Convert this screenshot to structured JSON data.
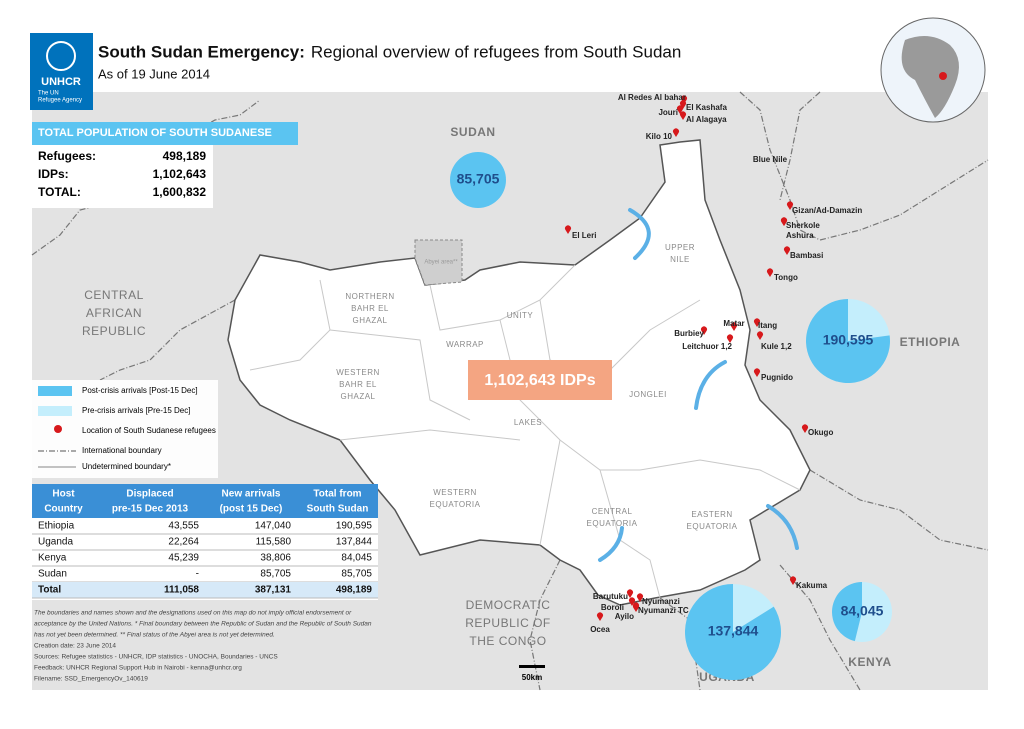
{
  "header": {
    "logo": "UNHCR",
    "logo_sub": [
      "The UN",
      "Refugee Agency"
    ],
    "title_bold": "South Sudan Emergency:",
    "title": "Regional overview of refugees from South Sudan",
    "date": "As of 19 June 2014"
  },
  "totals": {
    "heading": "TOTAL POPULATION OF SOUTH SUDANESE",
    "rows": [
      [
        "Refugees:",
        "498,189"
      ],
      [
        "IDPs:",
        "1,102,643"
      ],
      [
        "TOTAL:",
        "1,600,832"
      ]
    ]
  },
  "idp_label": "1,102,643 IDPs",
  "legend": {
    "post": "Post-crisis arrivals [Post-15 Dec]",
    "pre": "Pre-crisis arrivals [Pre-15 Dec]",
    "location": "Location of South Sudanese refugees",
    "intl": "International boundary",
    "undet": "Undetermined boundary*"
  },
  "table": {
    "headers": [
      [
        "Host",
        "Country"
      ],
      [
        "Displaced",
        "pre-15 Dec 2013"
      ],
      [
        "New arrivals",
        "(post 15 Dec)"
      ],
      [
        "Total from",
        "South Sudan"
      ]
    ],
    "rows": [
      [
        "Ethiopia",
        "43,555",
        "147,040",
        "190,595"
      ],
      [
        "Uganda",
        "22,264",
        "115,580",
        "137,844"
      ],
      [
        "Kenya",
        "45,239",
        "38,806",
        "84,045"
      ],
      [
        "Sudan",
        "-",
        "85,705",
        "85,705"
      ],
      [
        "Total",
        "111,058",
        "387,131",
        "498,189"
      ]
    ]
  },
  "notes": [
    "The boundaries and names shown and the designations used on this map do not imply official endorsement or",
    "acceptance by the United Nations. * Final boundary between the Republic of Sudan and the Republic of South Sudan",
    "has not yet been determined. ** Final status of the Abyei area is not yet determined.",
    "Creation date: 23 June 2014",
    "Sources: Refugee statistics - UNHCR, IDP statistics - UNOCHA, Boundaries - UNCS",
    "Feedback: UNHCR Regional Support Hub in Nairobi - kenna@unhcr.org",
    "Filename: SSD_EmergencyOv_140619"
  ],
  "countries": [
    [
      "SUDAN"
    ],
    [
      "CENTRAL",
      "AFRICAN",
      "REPUBLIC"
    ],
    [
      "ETHIOPIA"
    ],
    [
      "DEMOCRATIC",
      "REPUBLIC OF",
      "THE CONGO"
    ],
    [
      "UGANDA"
    ],
    [
      "KENYA"
    ]
  ],
  "blue_nile": "Blue Nile",
  "abyei": "Abyei area**",
  "regions": [
    [
      "NORTHERN",
      "BAHR EL",
      "GHAZAL"
    ],
    [
      "UNITY"
    ],
    [
      "WARRAP"
    ],
    [
      "WESTERN",
      "BAHR EL",
      "GHAZAL"
    ],
    [
      "UPPER",
      "NILE"
    ],
    [
      "JONGLEI"
    ],
    [
      "LAKES"
    ],
    [
      "WESTERN",
      "EQUATORIA"
    ],
    [
      "CENTRAL",
      "EQUATORIA"
    ],
    [
      "EASTERN",
      "EQUATORIA"
    ]
  ],
  "sites": [
    "Al Redes Al bahar",
    "Jouri",
    "El Kashafa",
    "Al Alagaya",
    "Kilo 10",
    "El Leri",
    "Gizan/Ad-Damazin",
    "Sherkole",
    "Ashura",
    "Bambasi",
    "Tongo",
    "Matar",
    "Itang",
    "Burbiey",
    "Leitchuor 1,2",
    "Kule 1,2",
    "Pugnido",
    "Okugo",
    "Kakuma",
    "Barutuku",
    "Boroli",
    "Nyumanzi",
    "Ayilo",
    "Nyumanzi TC",
    "Ocea"
  ],
  "pies": [
    {
      "label": "85,705",
      "pre": 0,
      "post": 85705
    },
    {
      "label": "190,595",
      "pre": 43555,
      "post": 147040
    },
    {
      "label": "137,844",
      "pre": 22264,
      "post": 115580
    },
    {
      "label": "84,045",
      "pre": 45239,
      "post": 38806
    }
  ],
  "colors": {
    "post": "#5bc4f1",
    "pre": "#c4eefc",
    "pin": "#d7191c"
  },
  "scale": "50km"
}
